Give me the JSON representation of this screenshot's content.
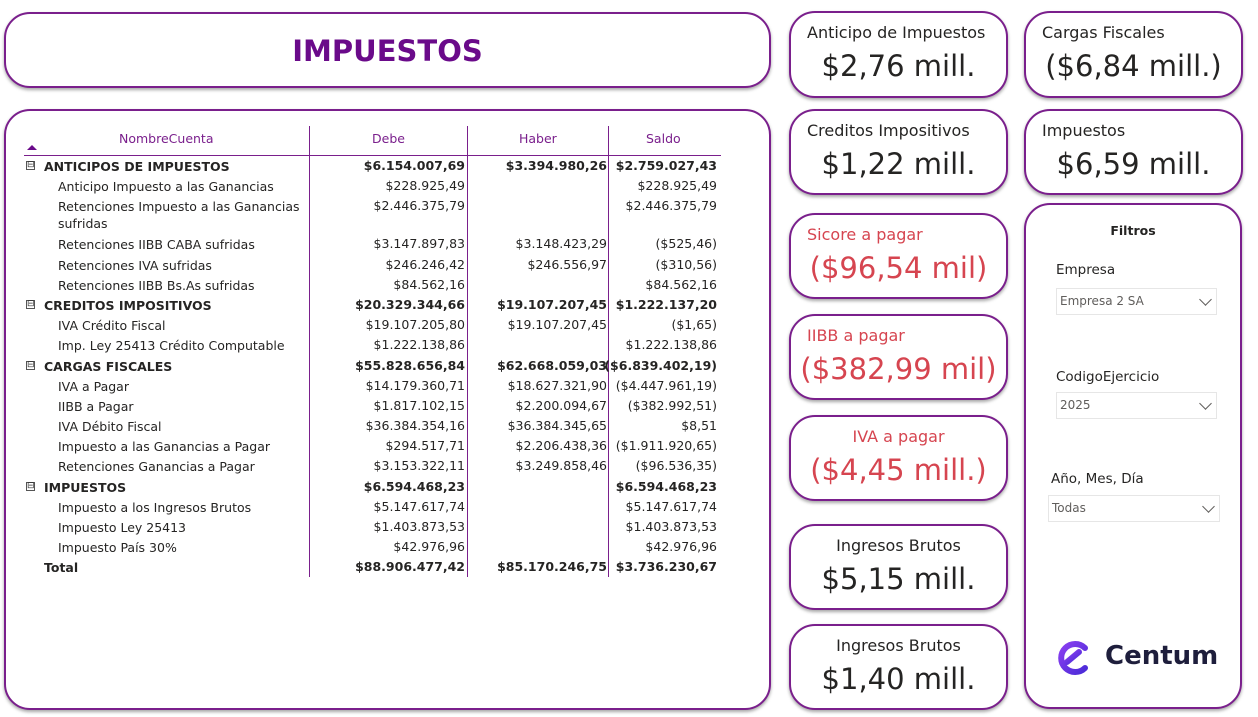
{
  "title": "IMPUESTOS",
  "table": {
    "headers": {
      "name": "NombreCuenta",
      "debe": "Debe",
      "haber": "Haber",
      "saldo": "Saldo"
    },
    "rows": [
      {
        "type": "group",
        "toggle": "⊟",
        "name": "ANTICIPOS DE IMPUESTOS",
        "debe": "$6.154.007,69",
        "haber": "$3.394.980,26",
        "saldo": "$2.759.027,43"
      },
      {
        "type": "item",
        "name": "Anticipo Impuesto a las Ganancias",
        "debe": "$228.925,49",
        "haber": "",
        "saldo": "$228.925,49"
      },
      {
        "type": "item",
        "name": "Retenciones Impuesto a las Ganancias sufridas",
        "debe": "$2.446.375,79",
        "haber": "",
        "saldo": "$2.446.375,79"
      },
      {
        "type": "item",
        "name": "Retenciones IIBB CABA sufridas",
        "debe": "$3.147.897,83",
        "haber": "$3.148.423,29",
        "saldo": "($525,46)"
      },
      {
        "type": "item",
        "name": "Retenciones IVA sufridas",
        "debe": "$246.246,42",
        "haber": "$246.556,97",
        "saldo": "($310,56)"
      },
      {
        "type": "item",
        "name": "Retenciones IIBB Bs.As sufridas",
        "debe": "$84.562,16",
        "haber": "",
        "saldo": "$84.562,16"
      },
      {
        "type": "group",
        "toggle": "⊟",
        "name": "CREDITOS IMPOSITIVOS",
        "debe": "$20.329.344,66",
        "haber": "$19.107.207,45",
        "saldo": "$1.222.137,20"
      },
      {
        "type": "item",
        "name": "IVA Crédito Fiscal",
        "debe": "$19.107.205,80",
        "haber": "$19.107.207,45",
        "saldo": "($1,65)"
      },
      {
        "type": "item",
        "name": "Imp. Ley 25413 Crédito Computable",
        "debe": "$1.222.138,86",
        "haber": "",
        "saldo": "$1.222.138,86"
      },
      {
        "type": "group",
        "toggle": "⊟",
        "name": "CARGAS FISCALES",
        "debe": "$55.828.656,84",
        "haber": "$62.668.059,03",
        "saldo": "($6.839.402,19)"
      },
      {
        "type": "item",
        "name": "IVA a Pagar",
        "debe": "$14.179.360,71",
        "haber": "$18.627.321,90",
        "saldo": "($4.447.961,19)"
      },
      {
        "type": "item",
        "name": "IIBB a Pagar",
        "debe": "$1.817.102,15",
        "haber": "$2.200.094,67",
        "saldo": "($382.992,51)"
      },
      {
        "type": "item",
        "name": "IVA Débito Fiscal",
        "debe": "$36.384.354,16",
        "haber": "$36.384.345,65",
        "saldo": "$8,51"
      },
      {
        "type": "item",
        "name": "Impuesto a las Ganancias a Pagar",
        "debe": "$294.517,71",
        "haber": "$2.206.438,36",
        "saldo": "($1.911.920,65)"
      },
      {
        "type": "item",
        "name": "Retenciones Ganancias a Pagar",
        "debe": "$3.153.322,11",
        "haber": "$3.249.858,46",
        "saldo": "($96.536,35)"
      },
      {
        "type": "group",
        "toggle": "⊟",
        "name": "IMPUESTOS",
        "debe": "$6.594.468,23",
        "haber": "",
        "saldo": "$6.594.468,23"
      },
      {
        "type": "item",
        "name": "Impuesto a los Ingresos Brutos",
        "debe": "$5.147.617,74",
        "haber": "",
        "saldo": "$5.147.617,74"
      },
      {
        "type": "item",
        "name": "Impuesto Ley 25413",
        "debe": "$1.403.873,53",
        "haber": "",
        "saldo": "$1.403.873,53"
      },
      {
        "type": "item",
        "name": "Impuesto País 30%",
        "debe": "$42.976,96",
        "haber": "",
        "saldo": "$42.976,96"
      },
      {
        "type": "total",
        "name": "Total",
        "debe": "$88.906.477,42",
        "haber": "$85.170.246,75",
        "saldo": "$3.736.230,67"
      }
    ]
  },
  "cards": {
    "anticipo": {
      "label": "Anticipo de Impuestos",
      "value": "$2,76 mill."
    },
    "cargas": {
      "label": "Cargas Fiscales",
      "value": "($6,84 mill.)"
    },
    "creditos": {
      "label": "Creditos Impositivos",
      "value": "$1,22 mill."
    },
    "impuestos": {
      "label": "Impuestos",
      "value": "$6,59 mill."
    },
    "sicore": {
      "label": "Sicore a pagar",
      "value": "($96,54 mil)"
    },
    "iibb": {
      "label": "IIBB a pagar",
      "value": "($382,99 mil)"
    },
    "iva": {
      "label": "IVA a pagar",
      "value": "($4,45 mill.)"
    },
    "ingresos1": {
      "label": "Ingresos Brutos",
      "value": "$5,15 mill."
    },
    "ingresos2": {
      "label": "Ingresos Brutos",
      "value": "$1,40 mill."
    }
  },
  "filters": {
    "title": "Filtros",
    "empresa": {
      "label": "Empresa",
      "value": "Empresa 2 SA"
    },
    "codigo": {
      "label": "CodigoEjercicio",
      "value": "2025"
    },
    "fecha": {
      "label": "Año, Mes, Día",
      "value": "Todas"
    }
  },
  "logo": {
    "text": "Centum",
    "icon": "centum-logo-icon"
  },
  "colors": {
    "accent": "#7a1f8c",
    "title": "#6a0a8a",
    "negative": "#d64550"
  }
}
